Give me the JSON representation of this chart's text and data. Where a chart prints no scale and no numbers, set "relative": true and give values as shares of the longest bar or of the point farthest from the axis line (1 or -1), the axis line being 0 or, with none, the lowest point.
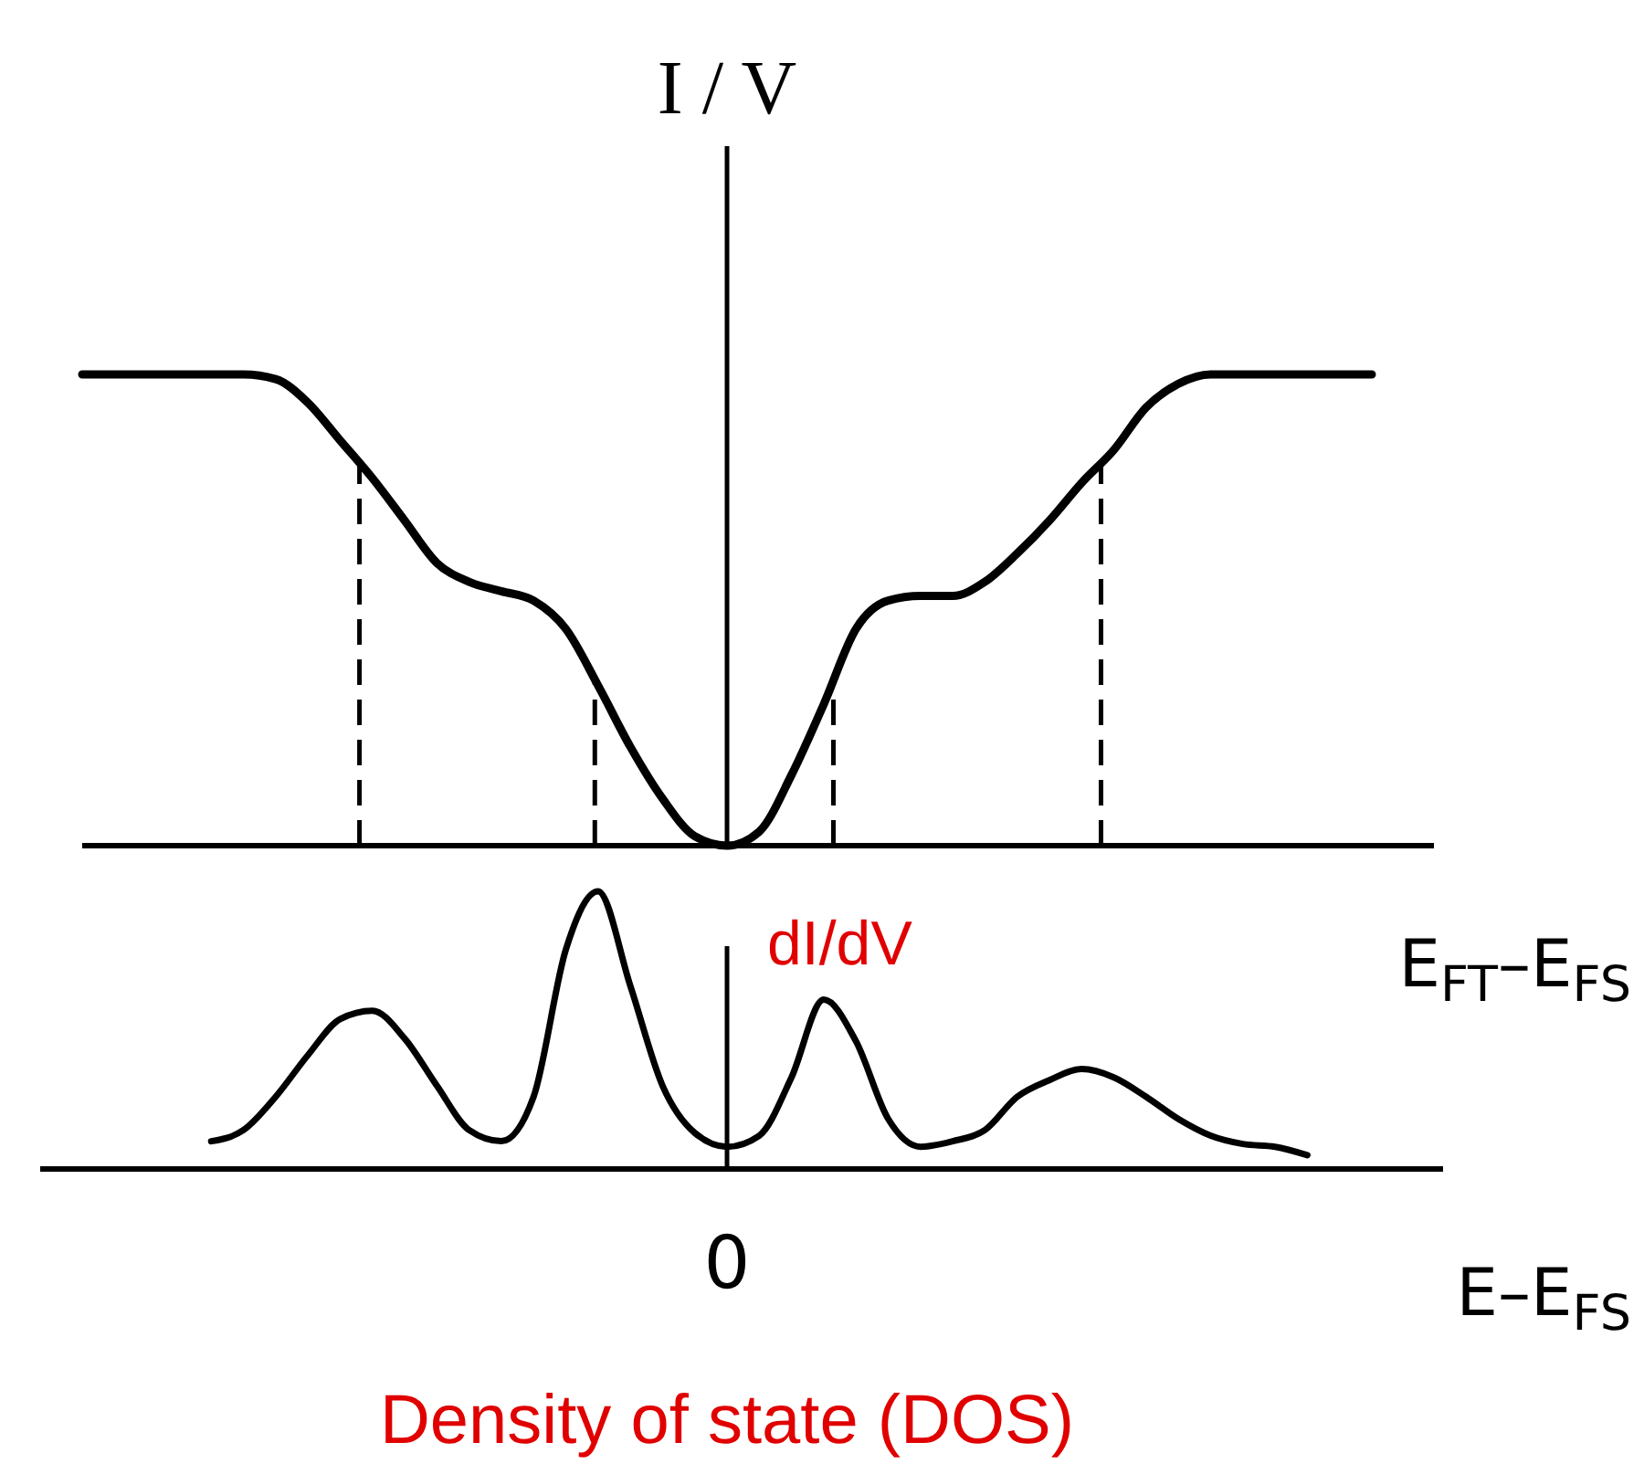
{
  "chart_data": [
    {
      "type": "line",
      "relative": true,
      "ylabel": "I / V",
      "xlabel": "E$_{FT}$–E$_{FS}$",
      "categories": [
        null,
        null,
        null,
        null,
        null,
        null,
        null,
        null,
        null,
        null,
        null,
        null,
        null,
        null,
        null,
        null,
        null,
        null,
        null,
        null,
        null,
        null,
        null,
        null,
        null,
        null,
        null,
        null,
        null,
        null,
        null,
        null,
        null,
        null,
        null,
        null,
        null,
        null,
        null,
        null,
        null
      ],
      "series": [
        {
          "color": "#000000",
          "values": [
            1,
            1,
            1,
            1,
            1,
            1,
            0.99,
            0.94,
            0.86,
            0.78,
            0.69,
            0.6,
            0.56,
            0.54,
            0.52,
            0.46,
            0.34,
            0.21,
            0.1,
            0.02,
            0,
            0.03,
            0.15,
            0.3,
            0.46,
            0.52,
            0.53,
            0.53,
            0.56,
            0.62,
            0.69,
            0.77,
            0.84,
            0.93,
            0.98,
            1,
            1,
            1,
            1,
            1,
            1
          ]
        }
      ]
    },
    {
      "type": "line",
      "relative": true,
      "ylabel": "dI/dV",
      "xlabel": "E–E$_{FS}$",
      "categories": [
        null,
        null,
        null,
        null,
        null,
        null,
        null,
        null,
        null,
        null,
        null,
        null,
        null,
        null,
        null,
        null,
        null,
        null,
        null,
        null,
        null,
        null,
        null,
        null,
        null,
        null,
        null,
        null,
        null,
        null,
        null,
        null,
        null,
        null,
        null
      ],
      "series": [
        {
          "color": "#000000",
          "values": [
            0.1,
            0.14,
            0.26,
            0.41,
            0.54,
            0.57,
            0.47,
            0.3,
            0.14,
            0.1,
            0.26,
            0.79,
            1,
            0.66,
            0.3,
            0.13,
            0.08,
            0.12,
            0.33,
            0.61,
            0.46,
            0.18,
            0.08,
            0.1,
            0.14,
            0.26,
            0.32,
            0.36,
            0.33,
            0.26,
            0.18,
            0.12,
            0.09,
            0.08,
            0.05
          ]
        }
      ],
      "annotations": [
        "0",
        "Density of state (DOS)"
      ]
    }
  ]
}
